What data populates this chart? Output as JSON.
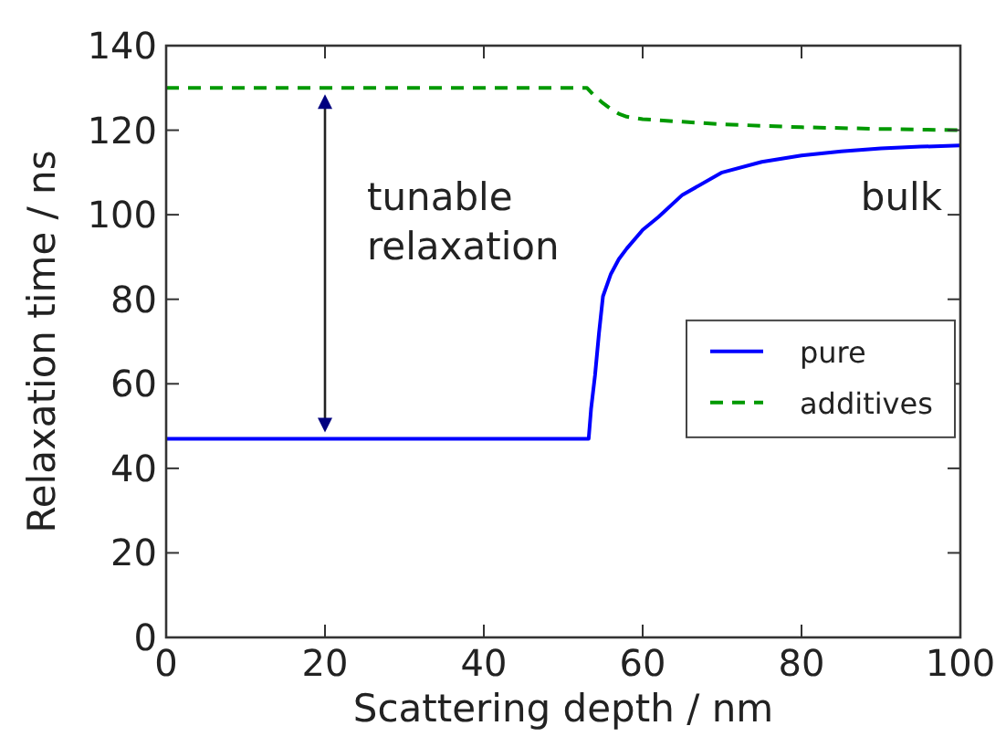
{
  "chart_data": {
    "type": "line",
    "xlabel": "Scattering depth / nm",
    "ylabel": "Relaxation time / ns",
    "xlim": [
      0,
      100
    ],
    "ylim": [
      0,
      140
    ],
    "xticks": [
      0,
      20,
      40,
      60,
      80,
      100
    ],
    "yticks": [
      0,
      20,
      40,
      60,
      80,
      100,
      120,
      140
    ],
    "grid": false,
    "legend": "right",
    "series": [
      {
        "name": "pure",
        "color": "#0000ff",
        "line_style": "solid",
        "x": [
          0,
          53,
          53.2,
          53.5,
          54,
          54.5,
          55,
          56,
          57,
          58,
          60,
          62,
          65,
          70,
          75,
          80,
          85,
          90,
          95,
          100
        ],
        "values": [
          47,
          47,
          47,
          54,
          62,
          72,
          80.7,
          86,
          89.5,
          92,
          96.4,
          99.5,
          104.7,
          110,
          112.5,
          114,
          115,
          115.7,
          116.1,
          116.4
        ]
      },
      {
        "name": "additives",
        "color": "#009900",
        "line_style": "dashed",
        "x": [
          0,
          53,
          54,
          55,
          56,
          57,
          58,
          60,
          65,
          70,
          80,
          90,
          100
        ],
        "values": [
          130,
          130,
          128,
          126.4,
          125,
          123.9,
          123.2,
          122.6,
          122,
          121.4,
          120.7,
          120.3,
          120
        ]
      }
    ],
    "annotations": [
      "tunable relaxation",
      "bulk"
    ]
  }
}
